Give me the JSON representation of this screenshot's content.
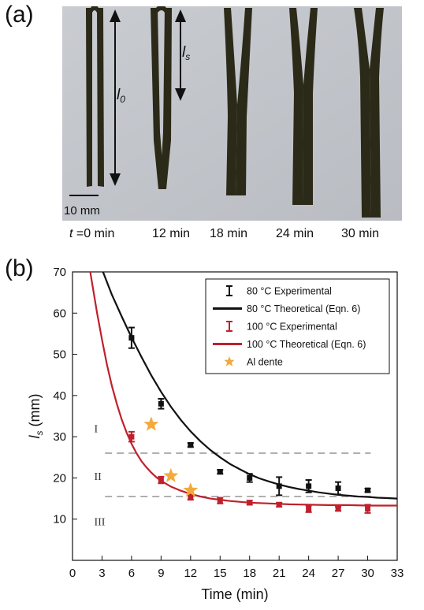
{
  "panel_a": {
    "label": "(a)",
    "arrow_labels": {
      "l0": "l",
      "l0_sub": "0",
      "ls": "l",
      "ls_sub": "s"
    },
    "scale_bar": "10 mm",
    "time_labels": [
      "t =0 min",
      "12 min",
      "18 min",
      "24 min",
      "30 min"
    ]
  },
  "panel_b": {
    "label": "(b)"
  },
  "chart_data": {
    "type": "scatter",
    "xlabel": "Time (min)",
    "ylabel": "ls (mm)",
    "ylabel_main": "l",
    "ylabel_sub": "s",
    "ylabel_unit": " (mm)",
    "xlim": [
      0,
      33
    ],
    "ylim": [
      0,
      70
    ],
    "xticks": [
      0,
      3,
      6,
      9,
      12,
      15,
      18,
      21,
      24,
      27,
      30,
      33
    ],
    "yticks": [
      10,
      20,
      30,
      40,
      50,
      60,
      70
    ],
    "grid": false,
    "legend_position": "top-right",
    "series": [
      {
        "name": "80 °C Experimental",
        "kind": "errorbar",
        "color": "#111111",
        "x": [
          6,
          9,
          12,
          15,
          18,
          21,
          24,
          27,
          30
        ],
        "y": [
          54,
          38,
          28,
          21.5,
          20,
          18,
          18,
          17.5,
          17
        ],
        "err": [
          2.5,
          1.2,
          0.5,
          0.5,
          1.0,
          2.2,
          1.5,
          1.5,
          0.4
        ]
      },
      {
        "name": "80 °C Theoretical (Eqn. 6)",
        "kind": "line",
        "color": "#111111",
        "x": [
          3.1,
          4,
          5,
          6,
          7,
          8,
          9,
          10,
          11,
          12,
          13,
          14,
          15,
          16,
          17,
          18,
          19,
          20,
          21,
          22,
          23,
          24,
          25,
          26,
          27,
          28,
          29,
          30,
          31,
          32,
          33
        ],
        "y": [
          70,
          64.5,
          59.2,
          54.1,
          49.4,
          44.9,
          40.9,
          37.3,
          34.1,
          31.3,
          28.9,
          26.8,
          25,
          23.4,
          22.1,
          20.9,
          19.9,
          19.1,
          18.4,
          17.8,
          17.3,
          16.9,
          16.5,
          16.2,
          15.9,
          15.7,
          15.5,
          15.4,
          15.2,
          15.1,
          15
        ]
      },
      {
        "name": "100 °C Experimental",
        "kind": "errorbar",
        "color": "#c0202c",
        "x": [
          6,
          9,
          12,
          15,
          18,
          21,
          24,
          27,
          30
        ],
        "y": [
          30,
          19.5,
          15.5,
          14.5,
          14,
          13.5,
          12.5,
          12.5,
          12.5
        ],
        "err": [
          1.2,
          0.8,
          0.8,
          0.7,
          0.5,
          0.5,
          0.8,
          0.5,
          1.0
        ]
      },
      {
        "name": "100 °C Theoretical (Eqn. 6)",
        "kind": "line",
        "color": "#c0202c",
        "x": [
          1.8,
          2.5,
          3,
          3.5,
          4,
          4.5,
          5,
          5.5,
          6,
          6.5,
          7,
          7.5,
          8,
          8.5,
          9,
          10,
          11,
          12,
          13,
          14,
          15,
          16,
          18,
          20,
          22,
          24,
          26,
          28,
          30,
          33
        ],
        "y": [
          70,
          60,
          53.5,
          47.5,
          42.4,
          38,
          34.2,
          31,
          28.3,
          26,
          24.1,
          22.6,
          21.3,
          20.2,
          19.3,
          17.9,
          16.9,
          16.1,
          15.5,
          15,
          14.7,
          14.4,
          14,
          13.8,
          13.6,
          13.5,
          13.4,
          13.4,
          13.3,
          13.3
        ]
      },
      {
        "name": "Al dente",
        "kind": "star",
        "color": "#f4a93a",
        "x": [
          8,
          10,
          12
        ],
        "y": [
          33,
          20.5,
          17
        ]
      }
    ],
    "reference_lines": [
      {
        "y": 26,
        "color": "#b0b0b0"
      },
      {
        "y": 15.5,
        "color": "#b0b0b0"
      }
    ],
    "region_labels": [
      {
        "text": "I",
        "x": 2.2,
        "y": 32
      },
      {
        "text": "II",
        "x": 2.2,
        "y": 20.5
      },
      {
        "text": "III",
        "x": 2.2,
        "y": 9.5
      }
    ]
  }
}
